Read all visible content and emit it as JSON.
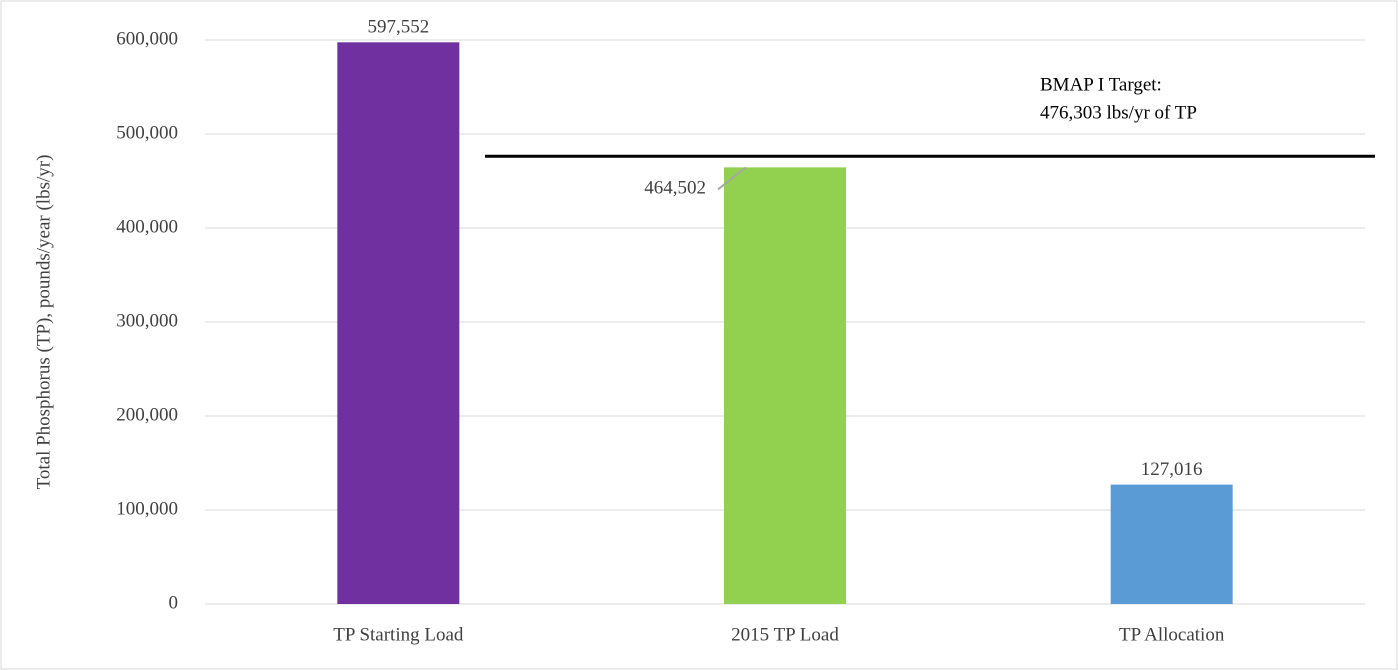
{
  "chart_data": {
    "type": "bar",
    "y_axis_label": "Total Phosphorus (TP), pounds/year (lbs/yr)",
    "categories": [
      "TP Starting Load",
      "2015 TP Load",
      "TP Allocation"
    ],
    "values": [
      597552,
      464502,
      127016
    ],
    "value_labels": [
      "597,552",
      "464,502",
      "127,016"
    ],
    "colors": [
      "#7030a0",
      "#92d050",
      "#5b9bd5"
    ],
    "ylim": [
      0,
      600000
    ],
    "yticks": [
      0,
      {
        "value": 100000,
        "label": "100,000"
      },
      {
        "value": 200000,
        "label": "200,000"
      },
      {
        "value": 300000,
        "label": "300,000"
      },
      {
        "value": 400000,
        "label": "400,000"
      },
      {
        "value": 500000,
        "label": "500,000"
      },
      {
        "value": 600000,
        "label": "600,000"
      }
    ],
    "grid": true,
    "target_line": {
      "value": 476303,
      "color": "#000000",
      "annotation": [
        "BMAP I Target:",
        "476,303 lbs/yr of TP"
      ]
    }
  }
}
